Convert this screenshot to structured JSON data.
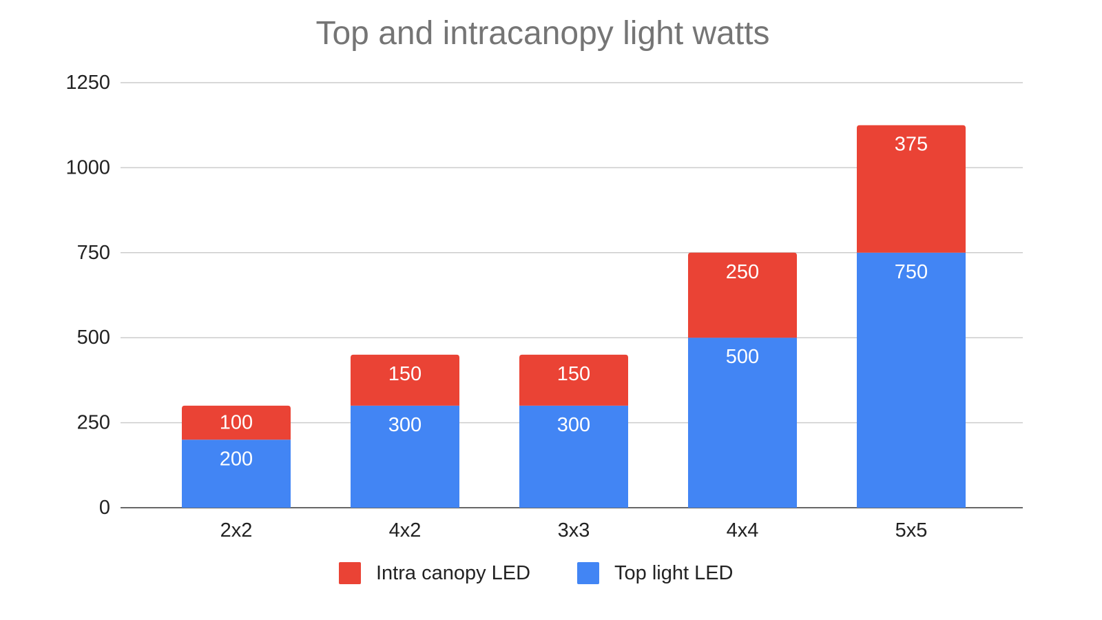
{
  "chart_data": {
    "type": "bar",
    "stacked": true,
    "title": "Top and intracanopy light watts",
    "xlabel": "",
    "ylabel": "",
    "categories": [
      "2x2",
      "4x2",
      "3x3",
      "4x4",
      "5x5"
    ],
    "ylim": [
      0,
      1250
    ],
    "yticks": [
      0,
      250,
      500,
      750,
      1000,
      1250
    ],
    "grid": true,
    "legend_position": "bottom",
    "series": [
      {
        "name": "Top light LED",
        "color": "#4285F4",
        "values": [
          200,
          300,
          300,
          500,
          750
        ]
      },
      {
        "name": "Intra canopy LED",
        "color": "#EA4335",
        "values": [
          100,
          150,
          150,
          250,
          375
        ]
      }
    ],
    "legend_order": [
      "Intra canopy LED",
      "Top light LED"
    ]
  }
}
